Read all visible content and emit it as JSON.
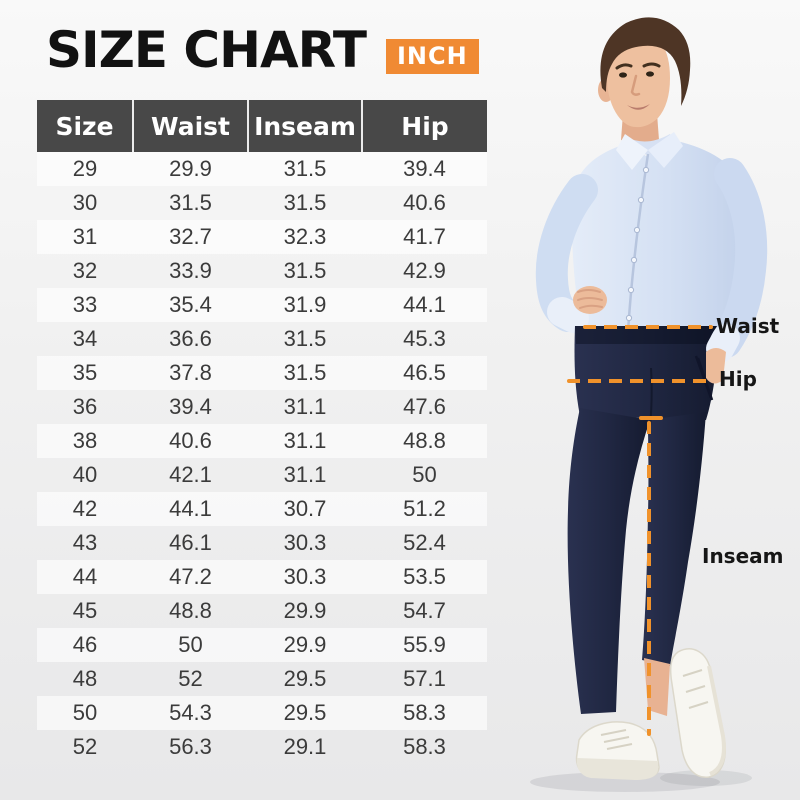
{
  "page": {
    "title": "SIZE CHART",
    "unit_badge": "INCH"
  },
  "table": {
    "columns": [
      "Size",
      "Waist",
      "Inseam",
      "Hip"
    ],
    "rows": [
      [
        "29",
        "29.9",
        "31.5",
        "39.4"
      ],
      [
        "30",
        "31.5",
        "31.5",
        "40.6"
      ],
      [
        "31",
        "32.7",
        "32.3",
        "41.7"
      ],
      [
        "32",
        "33.9",
        "31.5",
        "42.9"
      ],
      [
        "33",
        "35.4",
        "31.9",
        "44.1"
      ],
      [
        "34",
        "36.6",
        "31.5",
        "45.3"
      ],
      [
        "35",
        "37.8",
        "31.5",
        "46.5"
      ],
      [
        "36",
        "39.4",
        "31.1",
        "47.6"
      ],
      [
        "38",
        "40.6",
        "31.1",
        "48.8"
      ],
      [
        "40",
        "42.1",
        "31.1",
        "50"
      ],
      [
        "42",
        "44.1",
        "30.7",
        "51.2"
      ],
      [
        "43",
        "46.1",
        "30.3",
        "52.4"
      ],
      [
        "44",
        "47.2",
        "30.3",
        "53.5"
      ],
      [
        "45",
        "48.8",
        "29.9",
        "54.7"
      ],
      [
        "46",
        "50",
        "29.9",
        "55.9"
      ],
      [
        "48",
        "52",
        "29.5",
        "57.1"
      ],
      [
        "50",
        "54.3",
        "29.5",
        "58.3"
      ],
      [
        "52",
        "56.3",
        "29.1",
        "58.3"
      ]
    ]
  },
  "annotations": {
    "waist": "Waist",
    "hip": "Hip",
    "inseam": "Inseam"
  },
  "colors": {
    "accent_orange": "#F08A33",
    "dash_orange": "#F0922B",
    "header_bg": "#484848"
  }
}
